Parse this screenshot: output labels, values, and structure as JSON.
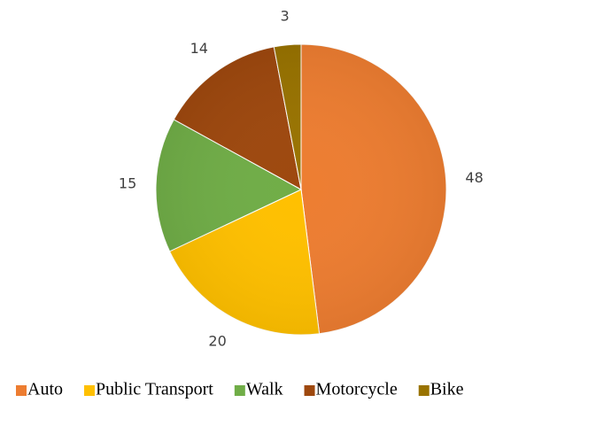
{
  "chart_data": {
    "type": "pie",
    "categories": [
      "Auto",
      "Public Transport",
      "Walk",
      "Motorcycle",
      "Bike"
    ],
    "values": [
      48,
      20,
      15,
      14,
      3
    ],
    "colors": [
      "#ed7d31",
      "#ffc000",
      "#70ad47",
      "#9e480e",
      "#997300"
    ],
    "legend": "bottom"
  }
}
